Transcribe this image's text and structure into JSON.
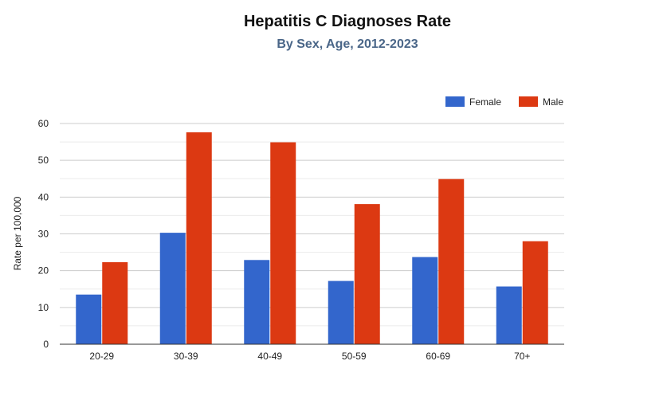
{
  "chart_data": {
    "type": "bar",
    "title": "Hepatitis C Diagnoses Rate",
    "subtitle": "By Sex, Age, 2012-2023",
    "xlabel": "",
    "ylabel": "Rate per 100,000",
    "categories": [
      "20-29",
      "30-39",
      "40-49",
      "50-59",
      "60-69",
      "70+"
    ],
    "series": [
      {
        "name": "Female",
        "color": "#3366cc",
        "values": [
          13.5,
          30.3,
          22.9,
          17.2,
          23.7,
          15.7
        ]
      },
      {
        "name": "Male",
        "color": "#dc3912",
        "values": [
          22.3,
          57.6,
          54.9,
          38.1,
          44.9,
          28.0
        ]
      }
    ],
    "ylim": [
      0,
      60
    ],
    "yticks": [
      0,
      10,
      20,
      30,
      40,
      50,
      60
    ],
    "grid": true,
    "legend": "top-right"
  }
}
